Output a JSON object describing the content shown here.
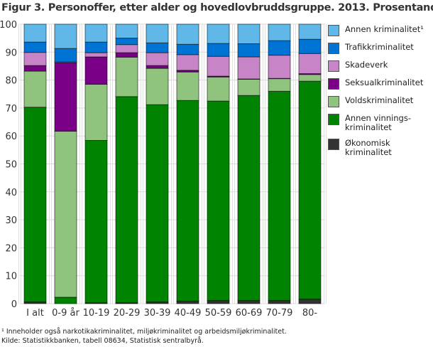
{
  "chart_data": {
    "type": "bar",
    "stacked": true,
    "title": "Figur 3. Personoffer, etter alder og hovedlovbruddsgruppe. 2013. Prosentandel",
    "xlabel": "",
    "ylabel": "",
    "ylim": [
      0,
      100
    ],
    "yticks": [
      0,
      10,
      20,
      30,
      40,
      50,
      60,
      70,
      80,
      90,
      100
    ],
    "grid": true,
    "legend_position": "right",
    "categories": [
      "I alt",
      "0-9 år",
      "10-19",
      "20-29",
      "30-39",
      "40-49",
      "50-59",
      "60-69",
      "70-79",
      "80-"
    ],
    "series": [
      {
        "name": "Økonomisk kriminalitet",
        "color": "#333333",
        "values": [
          0.6,
          0,
          0.3,
          0.3,
          0.6,
          0.9,
          1.1,
          1.1,
          1.1,
          1.6
        ]
      },
      {
        "name": "Annen vinnings-kriminalitet",
        "color": "#008300",
        "values": [
          69.7,
          2.3,
          58.1,
          73.8,
          70.6,
          71.8,
          71.4,
          73.4,
          74.9,
          78.0
        ]
      },
      {
        "name": "Voldskriminalitet",
        "color": "#90c47e",
        "values": [
          12.9,
          59.4,
          20.1,
          14.1,
          13.0,
          10.2,
          8.6,
          5.8,
          4.5,
          2.4
        ]
      },
      {
        "name": "Seksualkriminalitet",
        "color": "#7a0088",
        "values": [
          2.0,
          24.5,
          9.8,
          1.6,
          1.0,
          0.6,
          0.3,
          0.1,
          0.1,
          0.3
        ]
      },
      {
        "name": "Skadeverk",
        "color": "#c784c6",
        "values": [
          4.7,
          0.3,
          1.5,
          2.9,
          4.6,
          5.6,
          7.1,
          7.9,
          8.3,
          7.2
        ]
      },
      {
        "name": "Trafikkriminalitet",
        "color": "#0074d4",
        "values": [
          3.7,
          4.8,
          3.8,
          2.3,
          3.5,
          3.7,
          4.6,
          4.7,
          5.2,
          5.1
        ]
      },
      {
        "name": "Annen kriminalitet¹",
        "color": "#5fb8e8",
        "values": [
          6.4,
          8.7,
          6.4,
          5.0,
          6.7,
          7.2,
          6.9,
          7.0,
          5.9,
          5.4
        ]
      }
    ],
    "legend": [
      {
        "label": "Annen kriminalitet¹",
        "color": "#5fb8e8"
      },
      {
        "label": "Trafikkriminalitet",
        "color": "#0074d4"
      },
      {
        "label": "Skadeverk",
        "color": "#c784c6"
      },
      {
        "label": "Seksualkriminalitet",
        "color": "#7a0088"
      },
      {
        "label": "Voldskriminalitet",
        "color": "#90c47e"
      },
      {
        "label": "Annen vinnings-kriminalitet",
        "label_lines": [
          "Annen vinnings-",
          "kriminalitet"
        ],
        "color": "#008300"
      },
      {
        "label": "Økonomisk kriminalitet",
        "label_lines": [
          "Økonomisk",
          "kriminalitet"
        ],
        "color": "#333333"
      }
    ]
  },
  "footnotes": {
    "note": "¹ Inneholder også narkotikakriminalitet, miljøkriminalitet og arbeidsmiljøkriminalitet.",
    "source": "Kilde: Statistikkbanken, tabell 08634, Statistisk sentralbyrå."
  }
}
